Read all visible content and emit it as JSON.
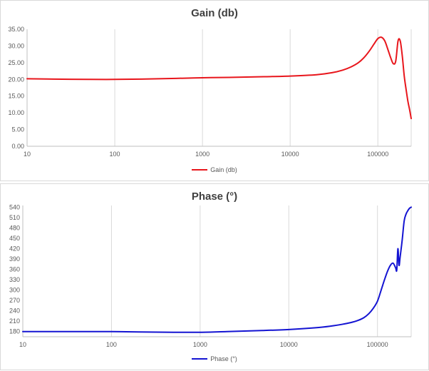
{
  "chart_data": [
    {
      "type": "line",
      "title": "Gain (db)",
      "xscale": "log",
      "xlim": [
        10,
        240000
      ],
      "ylim": [
        0,
        35
      ],
      "x_ticks": [
        "10",
        "100",
        "1000",
        "10000",
        "100000"
      ],
      "y_ticks": [
        "0.00",
        "5.00",
        "10.00",
        "15.00",
        "20.00",
        "25.00",
        "30.00",
        "35.00"
      ],
      "grid": "vertical",
      "legend": "bottom",
      "series": [
        {
          "name": "Gain (db)",
          "color": "#e8161c",
          "x": [
            10,
            20,
            50,
            100,
            200,
            500,
            1000,
            2000,
            5000,
            10000,
            20000,
            30000,
            40000,
            50000,
            60000,
            70000,
            80000,
            90000,
            100000,
            110000,
            120000,
            130000,
            140000,
            150000,
            160000,
            170000,
            180000,
            190000,
            200000,
            210000,
            220000,
            230000,
            240000
          ],
          "y": [
            20.2,
            20.1,
            20.0,
            20.0,
            20.1,
            20.3,
            20.5,
            20.6,
            20.8,
            21.0,
            21.4,
            22.0,
            22.8,
            23.8,
            25.0,
            26.6,
            28.5,
            30.5,
            32.2,
            32.6,
            31.5,
            29.0,
            26.5,
            24.7,
            25.5,
            31.5,
            31.5,
            27.0,
            21.0,
            17.0,
            13.5,
            11.0,
            8.3
          ]
        }
      ]
    },
    {
      "type": "line",
      "title": "Phase (°)",
      "xscale": "log",
      "xlim": [
        10,
        240000
      ],
      "ylim": [
        165,
        545
      ],
      "x_ticks": [
        "10",
        "100",
        "1000",
        "10000",
        "100000"
      ],
      "y_ticks": [
        "180",
        "210",
        "240",
        "270",
        "300",
        "330",
        "360",
        "390",
        "420",
        "450",
        "480",
        "510",
        "540"
      ],
      "grid": "vertical",
      "legend": "bottom",
      "series": [
        {
          "name": "Phase (°)",
          "color": "#1414d2",
          "x": [
            10,
            20,
            50,
            100,
            200,
            500,
            1000,
            2000,
            5000,
            10000,
            20000,
            30000,
            40000,
            50000,
            60000,
            70000,
            80000,
            90000,
            100000,
            110000,
            120000,
            130000,
            140000,
            150000,
            160000,
            165000,
            170000,
            175000,
            180000,
            190000,
            200000,
            210000,
            220000,
            230000,
            240000
          ],
          "y": [
            180,
            180,
            180,
            180,
            179,
            178,
            178,
            180,
            183,
            186,
            191,
            196,
            201,
            206,
            212,
            220,
            232,
            248,
            268,
            300,
            330,
            355,
            372,
            378,
            365,
            358,
            420,
            372,
            395,
            445,
            500,
            520,
            530,
            537,
            540
          ]
        }
      ]
    }
  ]
}
